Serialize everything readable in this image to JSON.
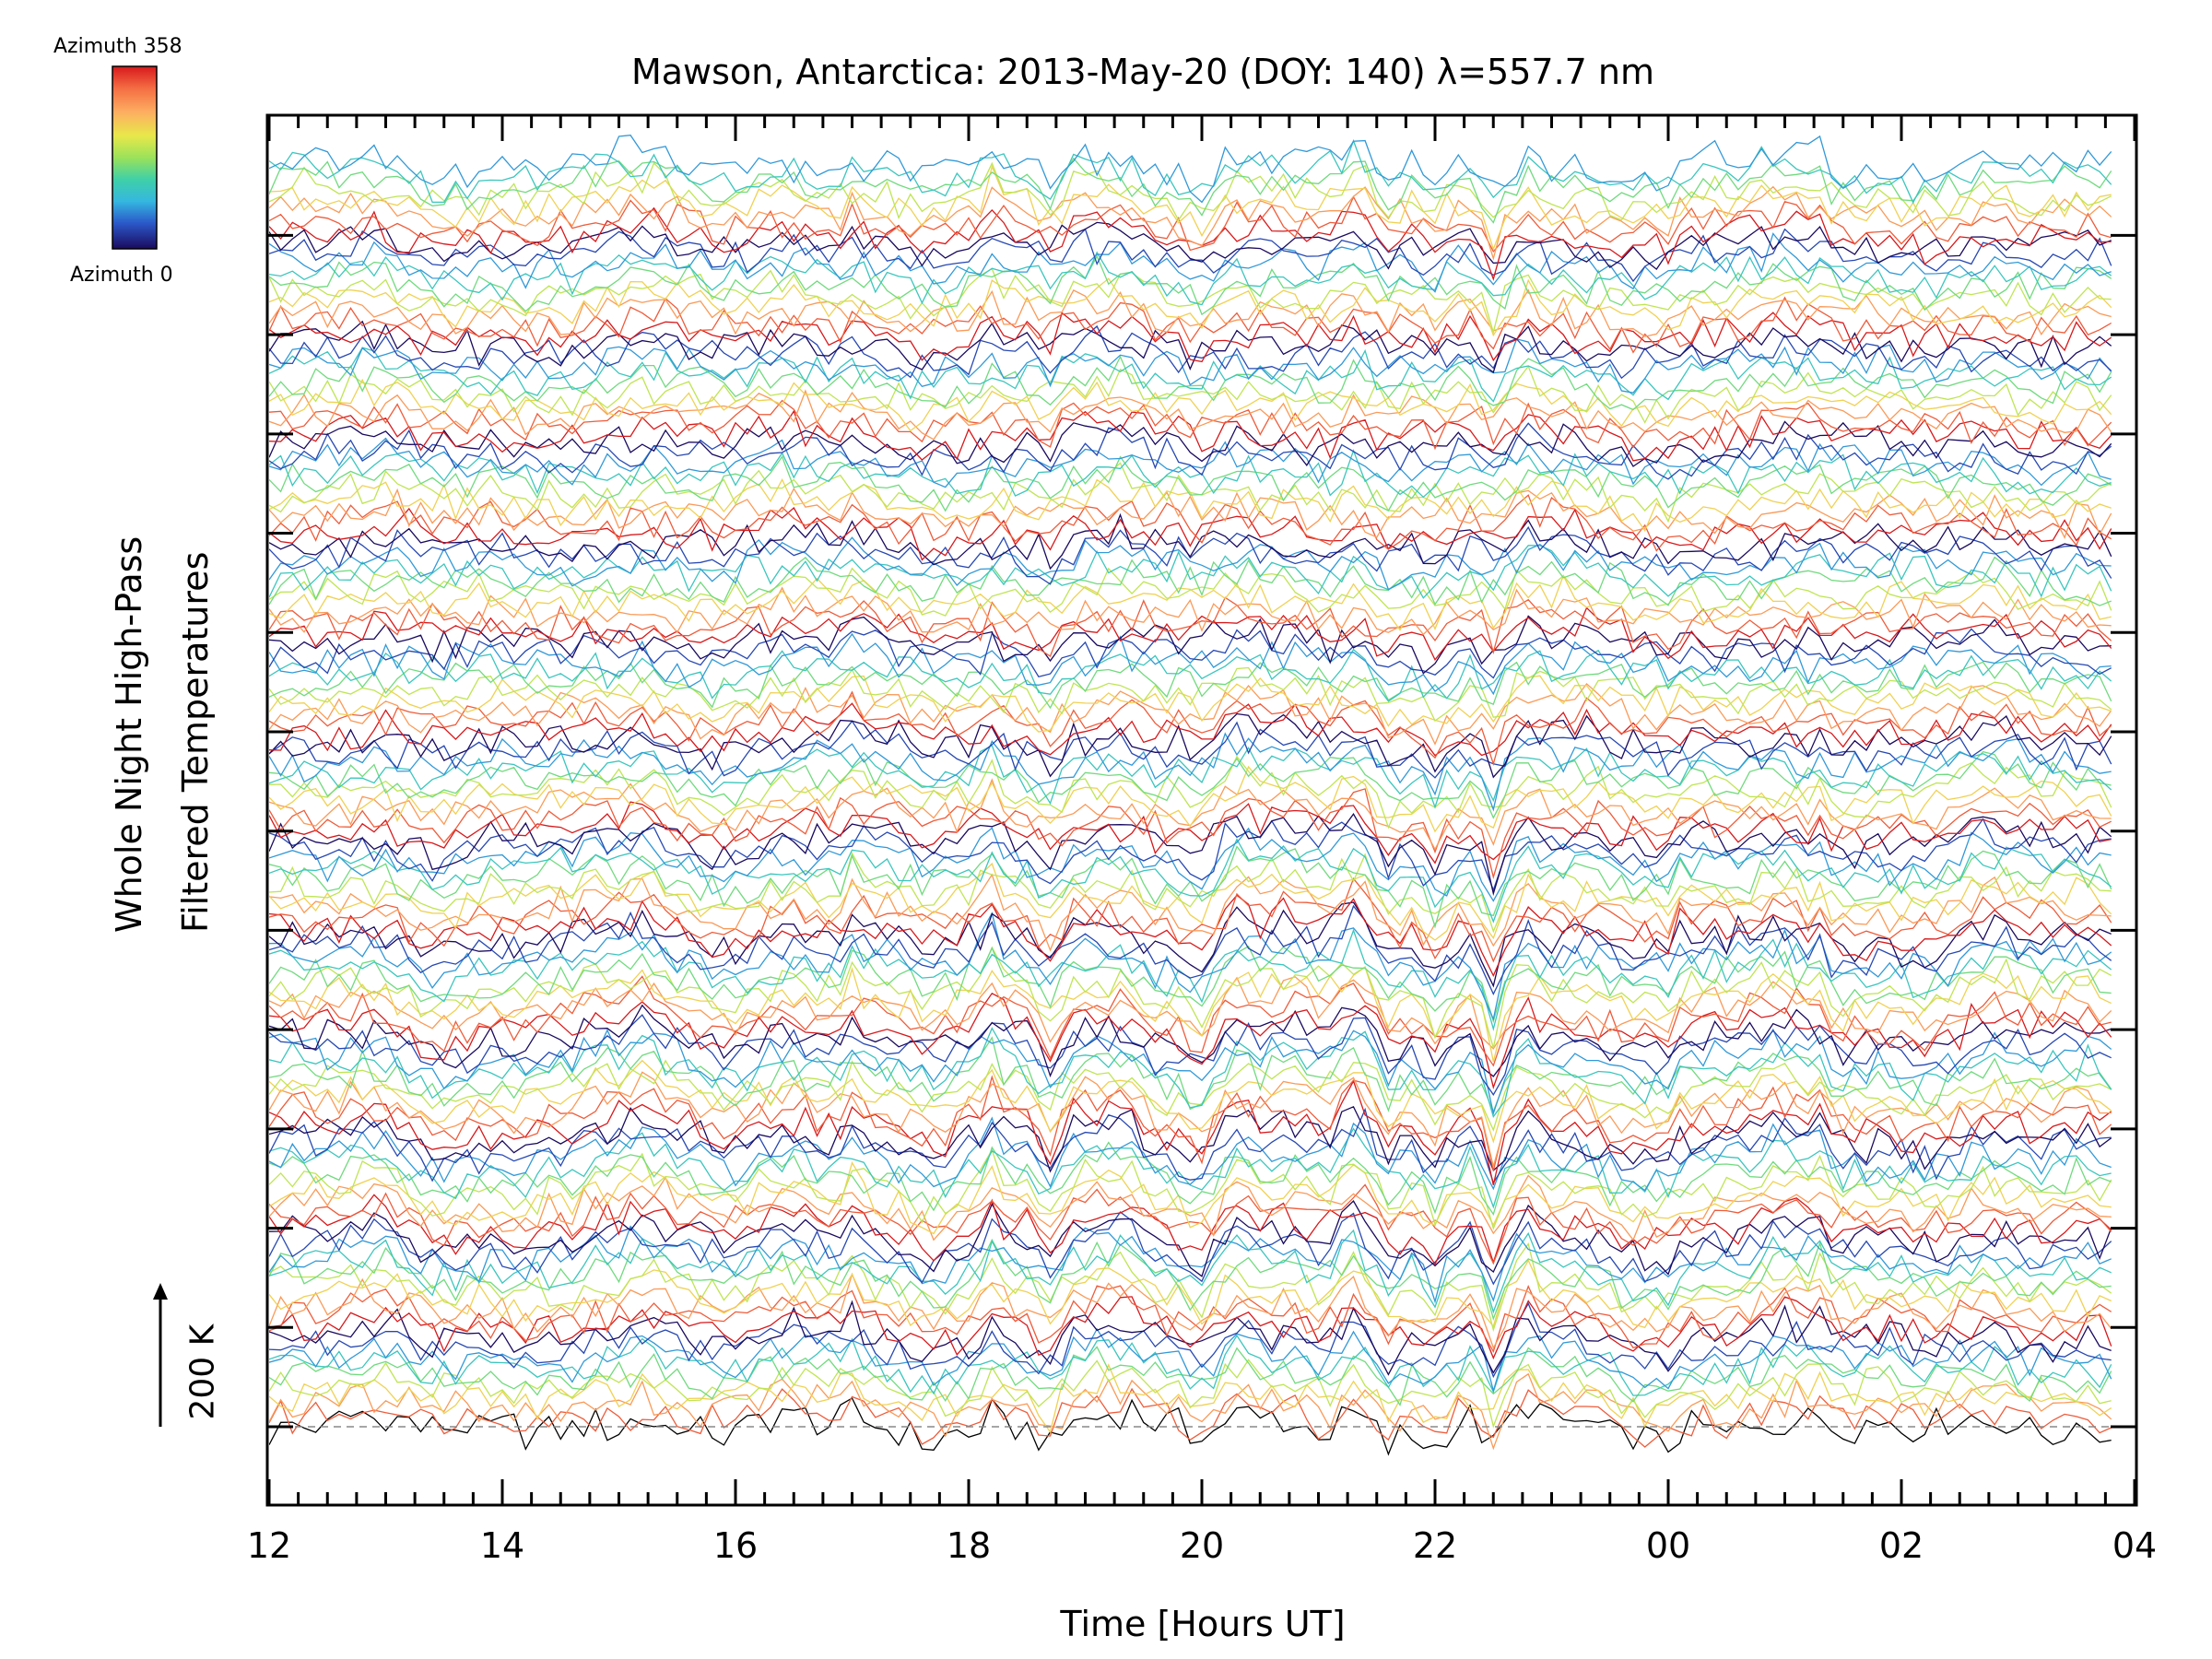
{
  "chart_data": {
    "type": "line",
    "title": "Mawson, Antarctica: 2013-May-20 (DOY: 140) λ=557.7 nm",
    "xlabel": "Time [Hours UT]",
    "ylabel_lines": [
      "Whole Night High-Pass",
      "Filtered Temperatures"
    ],
    "x_range_hours_ut": [
      12,
      28
    ],
    "x_tick_labels": [
      "12",
      "14",
      "16",
      "18",
      "20",
      "22",
      "00",
      "02",
      "04"
    ],
    "scale_bar_label": "200 K",
    "colorbar": {
      "top_label": "Azimuth 358",
      "bottom_label": "Azimuth 0",
      "colors": [
        "#d7191c",
        "#f46d43",
        "#fdae61",
        "#fee08b",
        "#c7e56b",
        "#66c2a5",
        "#3ec1d9",
        "#3b82c8",
        "#2b3cb0",
        "#1a1060"
      ]
    },
    "stacked_traces": 128,
    "trace_groups": 13,
    "time_step_hours": 0.1,
    "events": [
      {
        "t": 18.7,
        "amp": -1.3,
        "w": 0.12
      },
      {
        "t": 19.35,
        "amp": 1.0,
        "w": 0.2
      },
      {
        "t": 19.95,
        "amp": -0.8,
        "w": 0.12
      },
      {
        "t": 20.3,
        "amp": 1.2,
        "w": 0.15
      },
      {
        "t": 21.3,
        "amp": 1.2,
        "w": 0.15
      },
      {
        "t": 21.6,
        "amp": -1.0,
        "w": 0.1
      },
      {
        "t": 22.0,
        "amp": -0.8,
        "w": 0.08
      },
      {
        "t": 22.5,
        "amp": -2.3,
        "w": 0.1
      },
      {
        "t": 22.8,
        "amp": 0.9,
        "w": 0.1
      },
      {
        "t": 15.2,
        "amp": 1.0,
        "w": 0.2
      },
      {
        "t": 14.6,
        "amp": -0.7,
        "w": 0.1
      },
      {
        "t": 17.0,
        "amp": 0.8,
        "w": 0.08
      },
      {
        "t": 18.2,
        "amp": 0.9,
        "w": 0.06
      },
      {
        "t": 24.0,
        "amp": -0.6,
        "w": 0.08
      },
      {
        "t": 25.3,
        "amp": 0.7,
        "w": 0.06
      }
    ]
  }
}
